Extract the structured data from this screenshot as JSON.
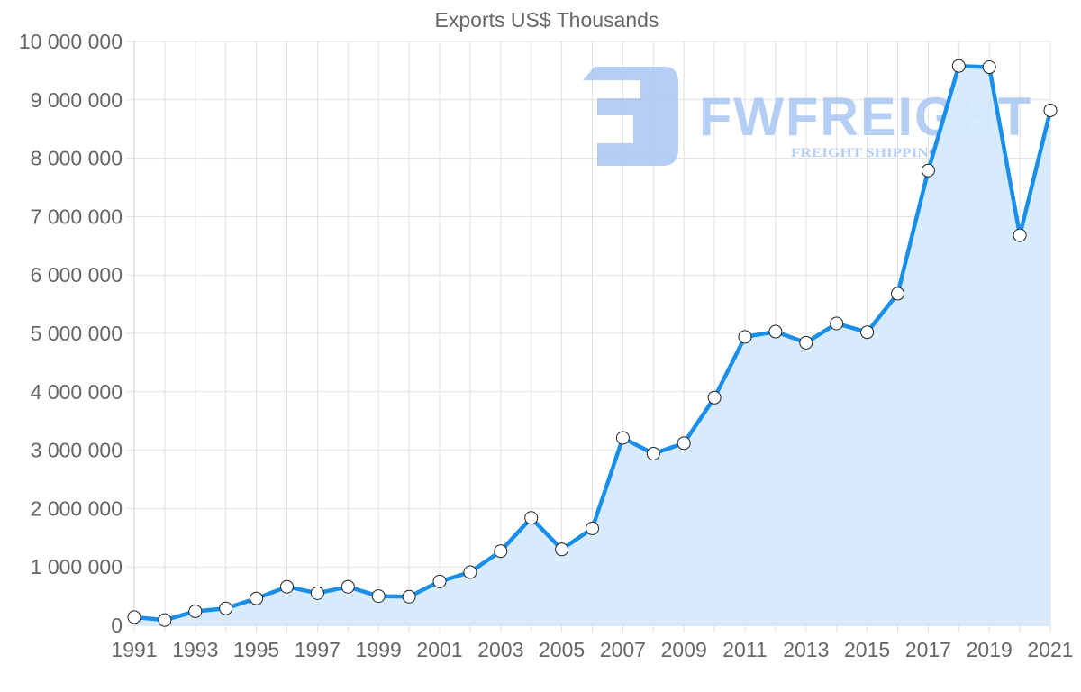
{
  "chart_data": {
    "type": "line",
    "title": "Exports US$ Thousands",
    "xlabel": "",
    "ylabel": "",
    "ylim": [
      0,
      10000000
    ],
    "yticks": [
      0,
      1000000,
      2000000,
      3000000,
      4000000,
      5000000,
      6000000,
      7000000,
      8000000,
      9000000,
      10000000
    ],
    "ytick_labels": [
      "0",
      "1 000 000",
      "2 000 000",
      "3 000 000",
      "4 000 000",
      "5 000 000",
      "6 000 000",
      "7 000 000",
      "8 000 000",
      "9 000 000",
      "10 000 000"
    ],
    "xtick_labels": [
      "1991",
      "1993",
      "1995",
      "1997",
      "1999",
      "2001",
      "2003",
      "2005",
      "2007",
      "2009",
      "2011",
      "2013",
      "2015",
      "2017",
      "2019",
      "2021"
    ],
    "grid": true,
    "legend": "none",
    "fill": "area under line",
    "categories": [
      "1991",
      "1992",
      "1993",
      "1994",
      "1995",
      "1996",
      "1997",
      "1998",
      "1999",
      "2000",
      "2001",
      "2002",
      "2003",
      "2004",
      "2005",
      "2006",
      "2007",
      "2008",
      "2009",
      "2010",
      "2011",
      "2012",
      "2013",
      "2014",
      "2015",
      "2016",
      "2017",
      "2018",
      "2019",
      "2020",
      "2021"
    ],
    "series": [
      {
        "name": "Exports US$ Thousands",
        "color": "#1a8fea",
        "fill_color": "#d6eafc",
        "values": [
          140000,
          90000,
          240000,
          290000,
          460000,
          660000,
          550000,
          660000,
          500000,
          490000,
          750000,
          910000,
          1270000,
          1840000,
          1300000,
          1660000,
          3210000,
          2940000,
          3120000,
          3900000,
          4940000,
          5030000,
          4840000,
          5170000,
          5020000,
          5680000,
          7790000,
          9580000,
          9560000,
          6680000,
          8820000
        ]
      }
    ]
  },
  "watermark": {
    "brand": "FWFREIGHT",
    "tagline": "FREIGHT SHIPPING",
    "color": "#a9c6f2"
  },
  "colors": {
    "axis_text": "#666666",
    "grid": "#e0e0e0",
    "point_fill": "#ffffff",
    "point_stroke": "#222222"
  }
}
